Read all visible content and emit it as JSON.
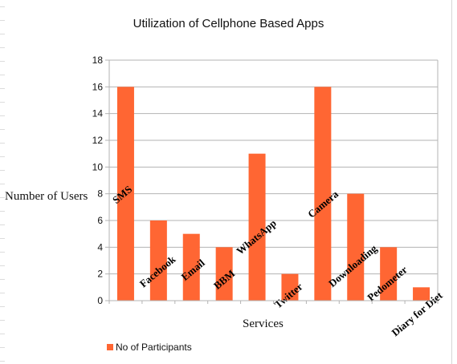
{
  "chart_data": {
    "type": "bar",
    "title": "Utilization of Cellphone Based Apps",
    "xlabel": "Services",
    "ylabel": "Number of Users",
    "categories": [
      "SMS",
      "Facebook",
      "Email",
      "BBM",
      "WhatsApp",
      "Twitter",
      "Camera",
      "Downloading",
      "Pedometer",
      "Diary for Diet"
    ],
    "series": [
      {
        "name": "No of Participants",
        "values": [
          16,
          6,
          5,
          4,
          11,
          2,
          16,
          8,
          4,
          1
        ]
      }
    ],
    "ylim": [
      0,
      18
    ],
    "yticks": [
      "0",
      "2",
      "4",
      "6",
      "8",
      "10",
      "12",
      "14",
      "16",
      "18"
    ],
    "grid": true,
    "legend_position": "bottom-left",
    "bar_color": "#ff6633"
  }
}
